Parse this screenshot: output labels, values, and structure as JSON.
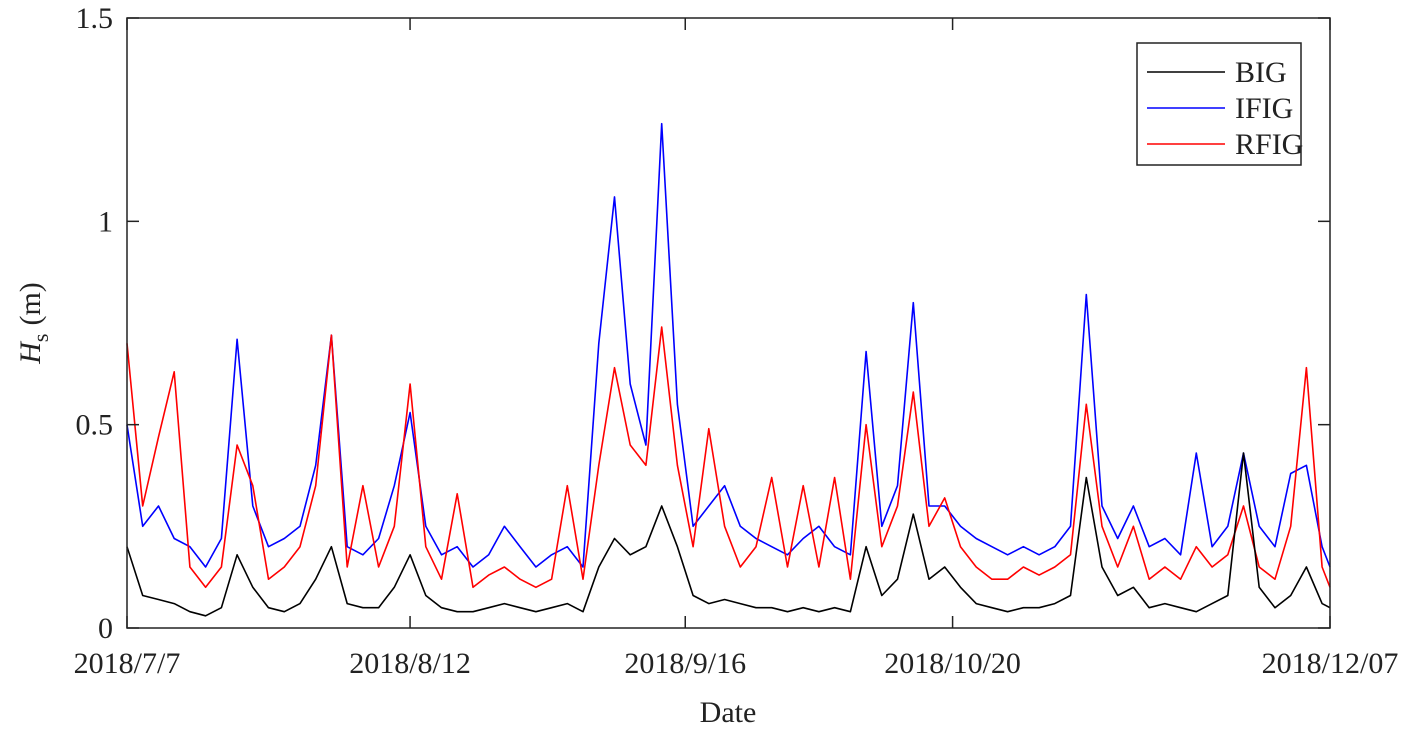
{
  "chart_data": {
    "type": "line",
    "x_label": "Date",
    "y_label": {
      "main": "H",
      "sub": "s",
      "unit": "(m)"
    },
    "x": [
      "2018-07-07",
      "2018-07-09",
      "2018-07-11",
      "2018-07-13",
      "2018-07-15",
      "2018-07-17",
      "2018-07-19",
      "2018-07-21",
      "2018-07-23",
      "2018-07-25",
      "2018-07-27",
      "2018-07-29",
      "2018-07-31",
      "2018-08-02",
      "2018-08-04",
      "2018-08-06",
      "2018-08-08",
      "2018-08-10",
      "2018-08-12",
      "2018-08-14",
      "2018-08-16",
      "2018-08-18",
      "2018-08-20",
      "2018-08-22",
      "2018-08-24",
      "2018-08-26",
      "2018-08-28",
      "2018-08-30",
      "2018-09-01",
      "2018-09-03",
      "2018-09-05",
      "2018-09-07",
      "2018-09-09",
      "2018-09-11",
      "2018-09-13",
      "2018-09-15",
      "2018-09-17",
      "2018-09-19",
      "2018-09-21",
      "2018-09-23",
      "2018-09-25",
      "2018-09-27",
      "2018-09-29",
      "2018-10-01",
      "2018-10-03",
      "2018-10-05",
      "2018-10-07",
      "2018-10-09",
      "2018-10-11",
      "2018-10-13",
      "2018-10-15",
      "2018-10-17",
      "2018-10-19",
      "2018-10-21",
      "2018-10-23",
      "2018-10-25",
      "2018-10-27",
      "2018-10-29",
      "2018-10-31",
      "2018-11-02",
      "2018-11-04",
      "2018-11-06",
      "2018-11-08",
      "2018-11-10",
      "2018-11-12",
      "2018-11-14",
      "2018-11-16",
      "2018-11-18",
      "2018-11-20",
      "2018-11-22",
      "2018-11-24",
      "2018-11-26",
      "2018-11-28",
      "2018-11-30",
      "2018-12-02",
      "2018-12-04",
      "2018-12-06",
      "2018-12-07"
    ],
    "series": [
      {
        "name": "BIG",
        "color": "#000000",
        "values": [
          0.2,
          0.08,
          0.07,
          0.06,
          0.04,
          0.03,
          0.05,
          0.18,
          0.1,
          0.05,
          0.04,
          0.06,
          0.12,
          0.2,
          0.06,
          0.05,
          0.05,
          0.1,
          0.18,
          0.08,
          0.05,
          0.04,
          0.04,
          0.05,
          0.06,
          0.05,
          0.04,
          0.05,
          0.06,
          0.04,
          0.15,
          0.22,
          0.18,
          0.2,
          0.3,
          0.2,
          0.08,
          0.06,
          0.07,
          0.06,
          0.05,
          0.05,
          0.04,
          0.05,
          0.04,
          0.05,
          0.04,
          0.2,
          0.08,
          0.12,
          0.28,
          0.12,
          0.15,
          0.1,
          0.06,
          0.05,
          0.04,
          0.05,
          0.05,
          0.06,
          0.08,
          0.37,
          0.15,
          0.08,
          0.1,
          0.05,
          0.06,
          0.05,
          0.04,
          0.06,
          0.08,
          0.43,
          0.1,
          0.05,
          0.08,
          0.15,
          0.06,
          0.05
        ]
      },
      {
        "name": "IFIG",
        "color": "#0000ff",
        "values": [
          0.5,
          0.25,
          0.3,
          0.22,
          0.2,
          0.15,
          0.22,
          0.71,
          0.3,
          0.2,
          0.22,
          0.25,
          0.4,
          0.72,
          0.2,
          0.18,
          0.22,
          0.35,
          0.53,
          0.25,
          0.18,
          0.2,
          0.15,
          0.18,
          0.25,
          0.2,
          0.15,
          0.18,
          0.2,
          0.15,
          0.7,
          1.06,
          0.6,
          0.45,
          1.24,
          0.55,
          0.25,
          0.3,
          0.35,
          0.25,
          0.22,
          0.2,
          0.18,
          0.22,
          0.25,
          0.2,
          0.18,
          0.68,
          0.25,
          0.35,
          0.8,
          0.3,
          0.3,
          0.25,
          0.22,
          0.2,
          0.18,
          0.2,
          0.18,
          0.2,
          0.25,
          0.82,
          0.3,
          0.22,
          0.3,
          0.2,
          0.22,
          0.18,
          0.43,
          0.2,
          0.25,
          0.43,
          0.25,
          0.2,
          0.38,
          0.4,
          0.2,
          0.15
        ]
      },
      {
        "name": "RFIG",
        "color": "#ff0000",
        "values": [
          0.7,
          0.3,
          0.47,
          0.63,
          0.15,
          0.1,
          0.15,
          0.45,
          0.35,
          0.12,
          0.15,
          0.2,
          0.35,
          0.72,
          0.15,
          0.35,
          0.15,
          0.25,
          0.6,
          0.2,
          0.12,
          0.33,
          0.1,
          0.13,
          0.15,
          0.12,
          0.1,
          0.12,
          0.35,
          0.12,
          0.4,
          0.64,
          0.45,
          0.4,
          0.74,
          0.4,
          0.2,
          0.49,
          0.25,
          0.15,
          0.2,
          0.37,
          0.15,
          0.35,
          0.15,
          0.37,
          0.12,
          0.5,
          0.2,
          0.3,
          0.58,
          0.25,
          0.32,
          0.2,
          0.15,
          0.12,
          0.12,
          0.15,
          0.13,
          0.15,
          0.18,
          0.55,
          0.25,
          0.15,
          0.25,
          0.12,
          0.15,
          0.12,
          0.2,
          0.15,
          0.18,
          0.3,
          0.15,
          0.12,
          0.25,
          0.64,
          0.15,
          0.1
        ]
      }
    ],
    "xlim": [
      "2018-07-07",
      "2018-12-07"
    ],
    "xticks": [
      {
        "value": "2018-07-07",
        "label": "2018/7/7"
      },
      {
        "value": "2018-08-12",
        "label": "2018/8/12"
      },
      {
        "value": "2018-09-16",
        "label": "2018/9/16"
      },
      {
        "value": "2018-10-20",
        "label": "2018/10/20"
      },
      {
        "value": "2018-12-07",
        "label": "2018/12/07"
      }
    ],
    "ylim": [
      0,
      1.5
    ],
    "yticks": [
      0,
      0.5,
      1,
      1.5
    ],
    "draw_order": [
      "IFIG",
      "RFIG",
      "BIG"
    ],
    "legend": "upper right"
  }
}
